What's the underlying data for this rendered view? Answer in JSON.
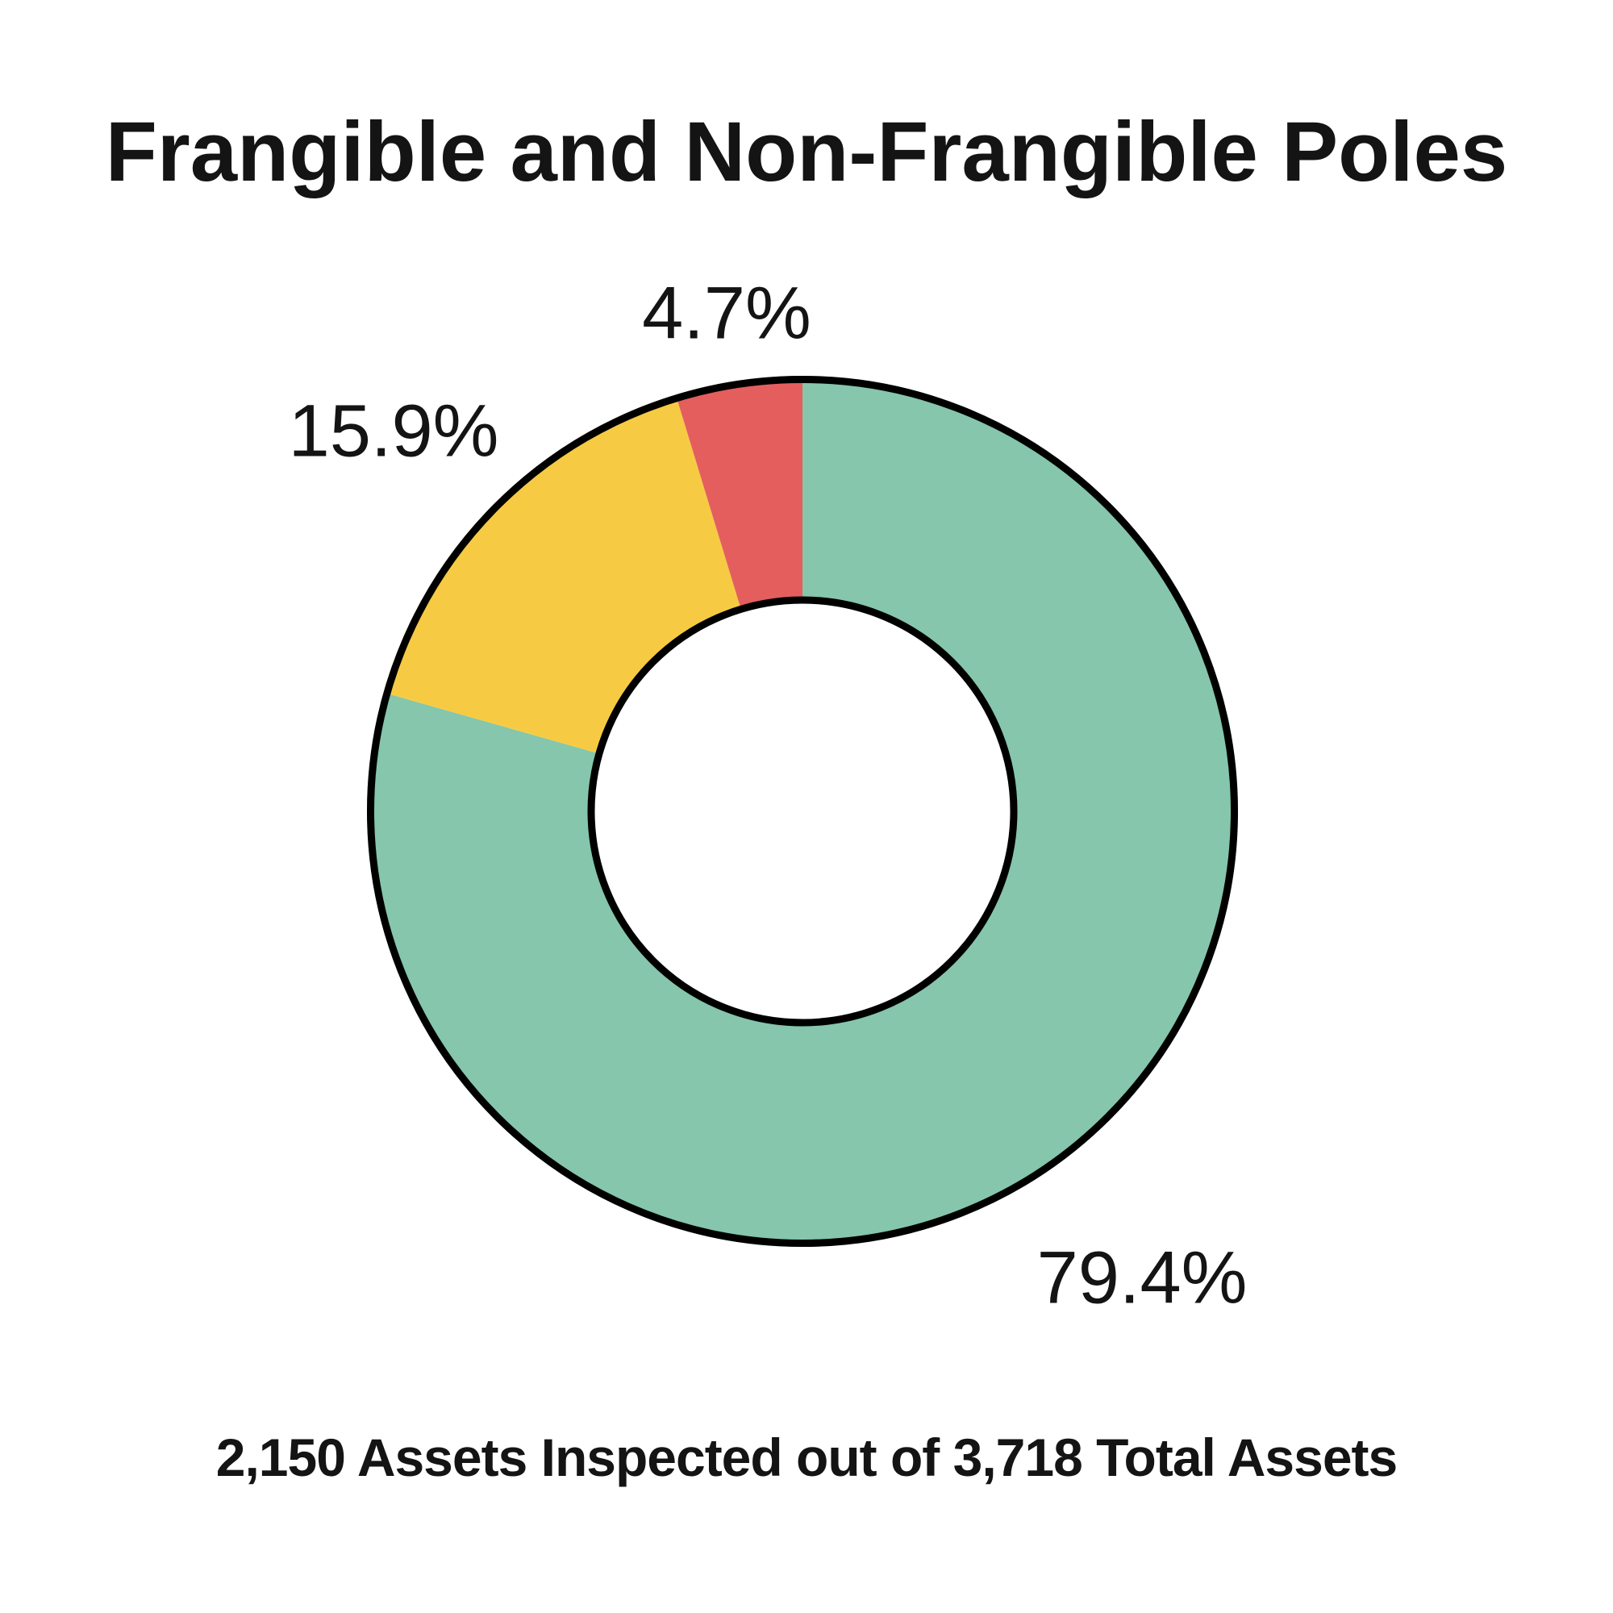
{
  "chart_data": {
    "type": "pie",
    "subtype": "donut",
    "title": "Frangible and Non-Frangible Poles",
    "footnote": "2,150 Assets Inspected out of 3,718 Total Assets",
    "direction": "clockwise",
    "start_angle_deg": 0,
    "hole_ratio": 0.49,
    "grid": false,
    "legend": "none",
    "outline_color": "#000000",
    "background": "#ffffff",
    "slices": [
      {
        "label": "79.4%",
        "value": 79.4,
        "color": "#85C6AC"
      },
      {
        "label": "15.9%",
        "value": 15.9,
        "color": "#F6CB43"
      },
      {
        "label": "4.7%",
        "value": 4.7,
        "color": "#E45E5E"
      }
    ],
    "totals": {
      "assets_inspected": "2,150",
      "total_assets": "3,718"
    }
  }
}
